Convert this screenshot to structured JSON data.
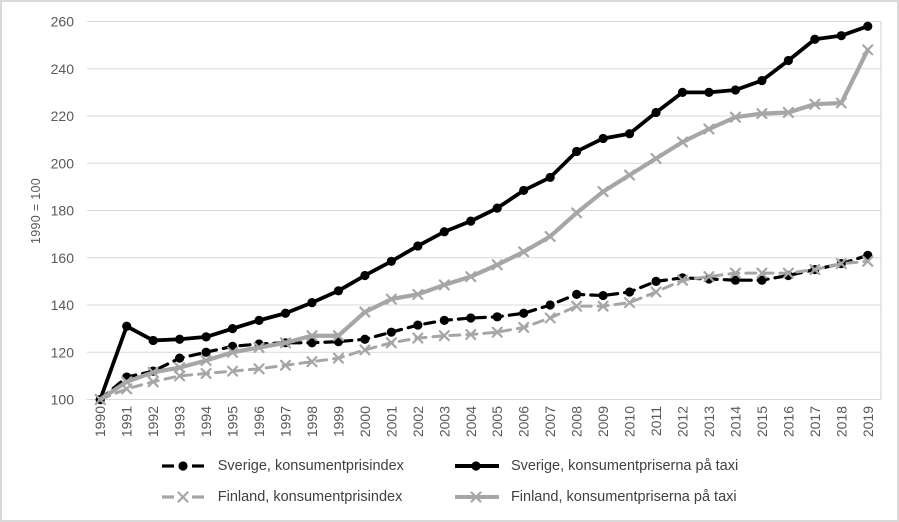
{
  "chart": {
    "y_axis_title": "1990 = 100",
    "colors": {
      "series_black": "#000000",
      "series_gray": "#a6a6a6",
      "gridline": "#d9d9d9",
      "axis_text": "#595959",
      "legend_text": "#404040",
      "frame_border": "#d9d9d9",
      "background": "#ffffff"
    }
  },
  "chart_data": {
    "type": "line",
    "title": "",
    "xlabel": "",
    "ylabel": "1990 = 100",
    "ylim": [
      100,
      260
    ],
    "ytick_step": 20,
    "grid": true,
    "legend_position": "bottom",
    "x": [
      "1990",
      "1991",
      "1992",
      "1993",
      "1994",
      "1995",
      "1996",
      "1997",
      "1998",
      "1999",
      "2000",
      "2001",
      "2002",
      "2003",
      "2004",
      "2005",
      "2006",
      "2007",
      "2008",
      "2009",
      "2010",
      "2011",
      "2012",
      "2013",
      "2014",
      "2015",
      "2016",
      "2017",
      "2018",
      "2019"
    ],
    "series": [
      {
        "name": "Sverige, konsumentprisindex",
        "color": "#000000",
        "dash": true,
        "marker": "circle",
        "width": 3.2,
        "values": [
          100,
          109.5,
          112,
          117.5,
          120,
          122.5,
          123.5,
          124,
          124,
          124.5,
          125.5,
          128.5,
          131.5,
          133.5,
          134.5,
          135,
          136.5,
          140,
          144.5,
          144,
          145.5,
          150,
          151.5,
          151,
          150.5,
          150.5,
          152.5,
          155,
          157.5,
          161
        ]
      },
      {
        "name": "Sverige, konsumentpriserna på taxi",
        "color": "#000000",
        "dash": false,
        "marker": "circle",
        "width": 3.8,
        "values": [
          100,
          131,
          125,
          125.5,
          126.5,
          130,
          133.5,
          136.5,
          141,
          146,
          152.5,
          158.5,
          165,
          171,
          175.5,
          181,
          188.5,
          194,
          205,
          210.5,
          212.5,
          221.5,
          230,
          230,
          231,
          235,
          243.5,
          252.5,
          254,
          258
        ]
      },
      {
        "name": "Finland, konsumentprisindex",
        "color": "#a6a6a6",
        "dash": true,
        "marker": "x",
        "width": 3,
        "values": [
          100,
          104.5,
          107.5,
          110,
          111,
          112,
          113,
          114.5,
          116,
          117.5,
          121,
          124,
          126,
          127,
          127.5,
          128.5,
          130.5,
          134.5,
          139.5,
          139.5,
          141,
          145.5,
          150.5,
          152,
          153.5,
          153.5,
          153.5,
          155,
          157.5,
          158.5
        ]
      },
      {
        "name": "Finland, konsumentpriserna på taxi",
        "color": "#a6a6a6",
        "dash": false,
        "marker": "x",
        "width": 4.2,
        "values": [
          100,
          107.5,
          111.5,
          113.5,
          116.5,
          120,
          122,
          124,
          127,
          127,
          137,
          142.5,
          144.5,
          148.5,
          152,
          157,
          162.5,
          169,
          179,
          188,
          195,
          202,
          209,
          214.5,
          219.5,
          221,
          221.5,
          225,
          225.5,
          248
        ]
      }
    ]
  }
}
